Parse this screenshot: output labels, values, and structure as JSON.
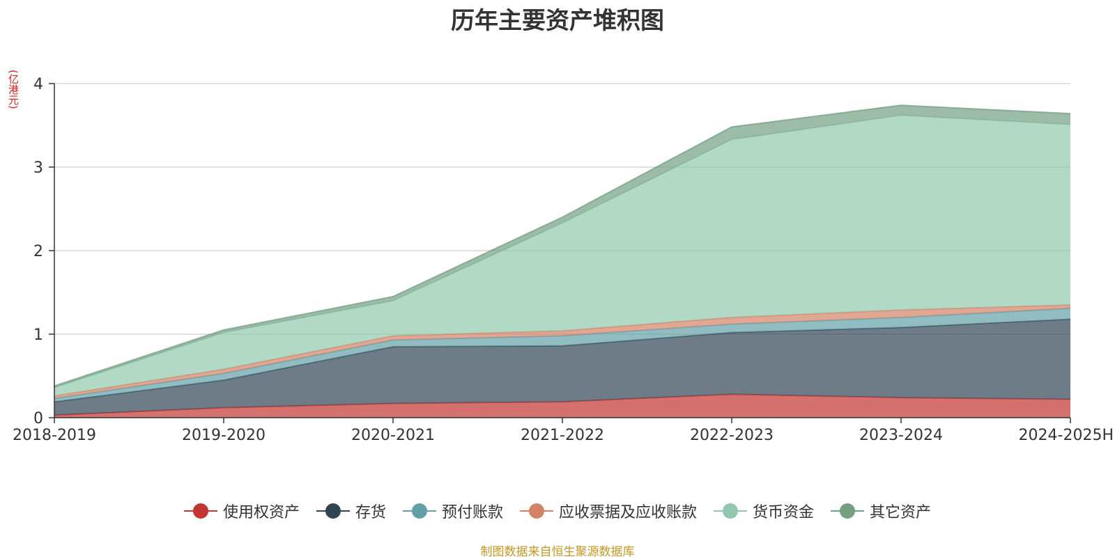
{
  "chart_data": {
    "type": "area",
    "stacked": true,
    "title": "历年主要资产堆积图",
    "unit_label": "(亿港元)",
    "categories": [
      "2018-2019",
      "2019-2020",
      "2020-2021",
      "2021-2022",
      "2022-2023",
      "2023-2024",
      "2024-2025H"
    ],
    "ylim": [
      0,
      4
    ],
    "yticks": [
      "0",
      "1",
      "2",
      "3",
      "4"
    ],
    "grid": true,
    "legend_position": "bottom",
    "series": [
      {
        "name": "使用权资产",
        "color": "#c23531",
        "values": [
          0.03,
          0.12,
          0.17,
          0.19,
          0.28,
          0.24,
          0.22
        ]
      },
      {
        "name": "存货",
        "color": "#2f4554",
        "values": [
          0.16,
          0.33,
          0.68,
          0.67,
          0.74,
          0.84,
          0.96
        ]
      },
      {
        "name": "预付账款",
        "color": "#61a0a8",
        "values": [
          0.04,
          0.08,
          0.08,
          0.12,
          0.1,
          0.12,
          0.13
        ]
      },
      {
        "name": "应收票据及应收账款",
        "color": "#d48265",
        "values": [
          0.03,
          0.05,
          0.05,
          0.06,
          0.08,
          0.09,
          0.04
        ]
      },
      {
        "name": "货币资金",
        "color": "#91c7ae",
        "values": [
          0.1,
          0.44,
          0.42,
          1.29,
          2.13,
          2.33,
          2.16
        ]
      },
      {
        "name": "其它资产",
        "color": "#749f83",
        "values": [
          0.02,
          0.03,
          0.05,
          0.07,
          0.15,
          0.12,
          0.13
        ]
      }
    ]
  },
  "source_text": "制图数据来自恒生聚源数据库"
}
